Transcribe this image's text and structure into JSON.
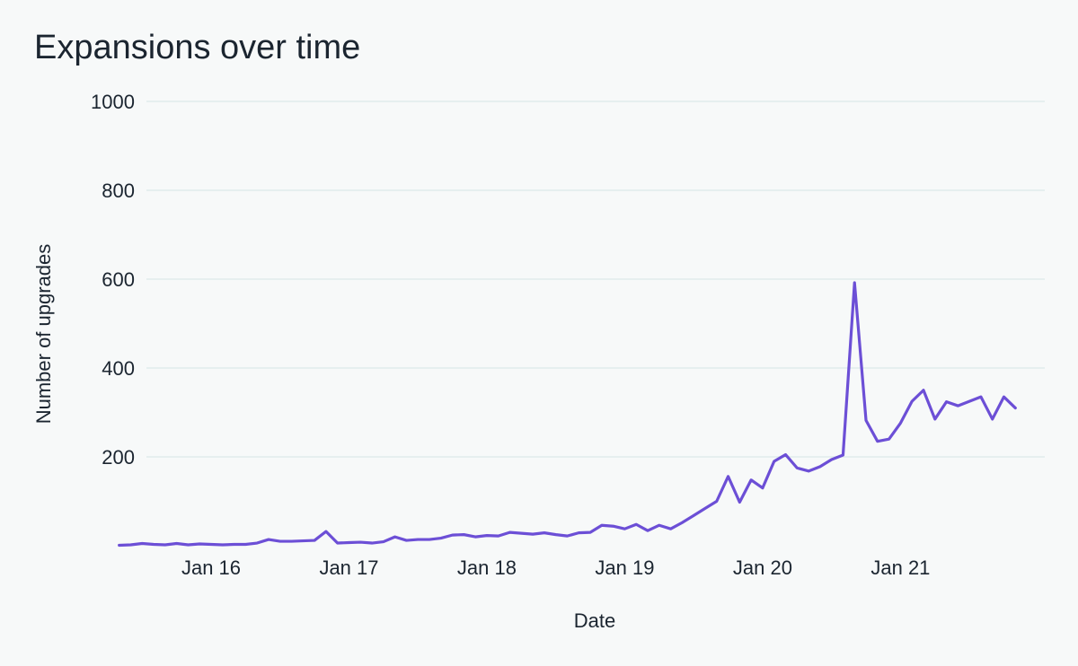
{
  "chart_data": {
    "type": "line",
    "title": "Expansions over time",
    "xlabel": "Date",
    "ylabel": "Number of upgrades",
    "ylim": [
      0,
      1000
    ],
    "yticks": [
      200,
      400,
      600,
      800,
      1000
    ],
    "grid": true,
    "colors": {
      "line": "#6c4fd6",
      "grid": "#e6efef",
      "text": "#1b2530",
      "background": "#f7f9f9"
    },
    "xticks": [
      {
        "label": "Jan 16",
        "month_index": 12
      },
      {
        "label": "Jan 17",
        "month_index": 24
      },
      {
        "label": "Jan 18",
        "month_index": 36
      },
      {
        "label": "Jan 19",
        "month_index": 48
      },
      {
        "label": "Jan 20",
        "month_index": 60
      },
      {
        "label": "Jan 21",
        "month_index": 72
      }
    ],
    "x_start_month_index": 4,
    "series": [
      {
        "name": "Number of upgrades",
        "start": "May 15",
        "interval": "month",
        "values": [
          1,
          2,
          5,
          3,
          2,
          5,
          2,
          4,
          3,
          2,
          3,
          3,
          6,
          14,
          10,
          10,
          11,
          12,
          32,
          6,
          7,
          8,
          6,
          9,
          20,
          12,
          14,
          14,
          17,
          24,
          25,
          20,
          23,
          22,
          30,
          28,
          26,
          29,
          25,
          22,
          29,
          30,
          46,
          44,
          38,
          48,
          34,
          46,
          38,
          52,
          68,
          84,
          100,
          156,
          98,
          148,
          130,
          190,
          205,
          175,
          168,
          178,
          194,
          204,
          592,
          282,
          235,
          240,
          276,
          325,
          350,
          285,
          324,
          315,
          325,
          335,
          285,
          335,
          310
        ]
      }
    ]
  }
}
